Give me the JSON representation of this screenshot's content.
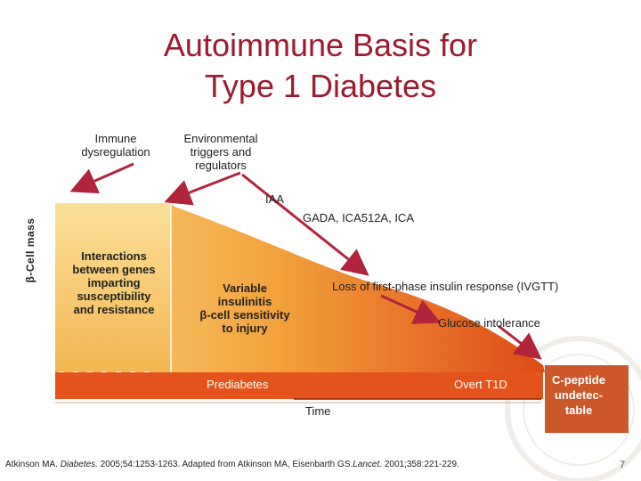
{
  "title_line1": "Autoimmune Basis for",
  "title_line2": "Type 1 Diabetes",
  "y_axis_label": "β-Cell mass",
  "labels": {
    "immune_line1": "Immune",
    "immune_line2": "dysregulation",
    "env_line1": "Environmental",
    "env_line2": "triggers and",
    "env_line3": "regulators",
    "iaa": "IAA",
    "gada": "GADA, ICA512A, ICA",
    "interactions_line1": "Interactions",
    "interactions_line2": "between genes",
    "interactions_line3": "imparting",
    "interactions_line4": "susceptibility",
    "interactions_line5": "and resistance",
    "variable_line1": "Variable",
    "variable_line2": "insulinitis",
    "variable_line3": "β-cell sensitivity",
    "variable_line4": "to injury",
    "loss": "Loss of first-phase  insulin response (IVGTT)",
    "glucose": "Glucose intolerance",
    "prediabetes": "Prediabetes",
    "overt": "Overt T1D",
    "time": "Time",
    "cpeptide_line1": "C-peptide",
    "cpeptide_line2": "undetec-",
    "cpeptide_line3": "table"
  },
  "footer": {
    "part1": "Atkinson MA. ",
    "journal1": "Diabetes.",
    "part2": " 2005;54:1253-1263. Adapted from Atkinson MA, Eisenbarth GS.",
    "journal2": "Lancet.",
    "part3": " 2001;358:221-229."
  },
  "page_number": "7",
  "colors": {
    "title": "#9b1b30",
    "arrow": "#b0243c",
    "curve_light": "#f7c46a",
    "curve_dark": "#e0521a",
    "cpeptide_badge": "#c84a18"
  }
}
